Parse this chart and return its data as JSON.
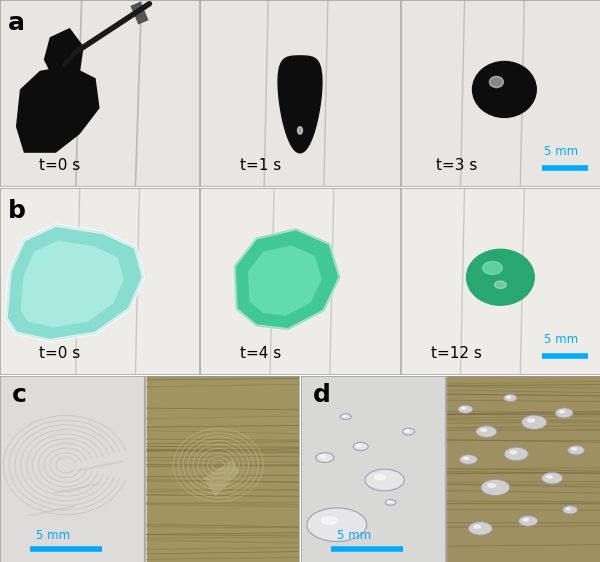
{
  "fig_width": 6.0,
  "fig_height": 5.62,
  "dpi": 100,
  "background_color": "#ffffff",
  "panel_labels": [
    "a",
    "b",
    "c",
    "d"
  ],
  "panel_label_fontsize": 18,
  "panel_label_fontweight": "bold",
  "row_a": {
    "times": [
      "t=0 s",
      "t=1 s",
      "t=3 s"
    ],
    "time_fontsize": 11,
    "scale_label": "5 mm",
    "scale_color": "#00aaff",
    "bg_color": "#e8e6e2"
  },
  "row_b": {
    "times": [
      "t=0 s",
      "t=4 s",
      "t=12 s"
    ],
    "time_fontsize": 11,
    "scale_label": "5 mm",
    "scale_color": "#00aaff",
    "bg_color": "#eeece8"
  },
  "row_c": {
    "label": "c",
    "scale_label": "5 mm",
    "scale_color": "#00aaff",
    "left_bg": "#dcdbd8",
    "right_bg": "#a09060"
  },
  "row_d": {
    "label": "d",
    "scale_label": "5 mm",
    "scale_color": "#00aaff",
    "left_bg": "#d8d8d6",
    "right_bg": "#9e9060"
  },
  "border_color": "#888888",
  "slide_line_color": "#cccccc"
}
